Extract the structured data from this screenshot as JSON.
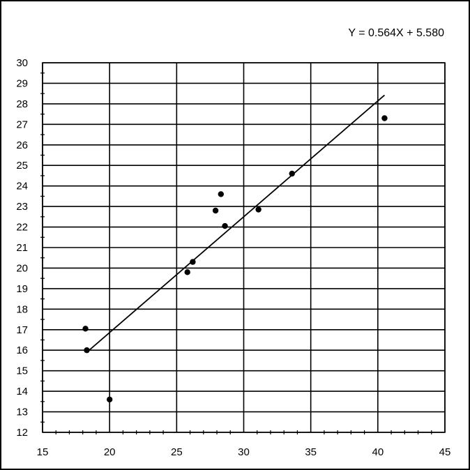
{
  "chart_data": {
    "type": "scatter",
    "title": "",
    "xlabel": "",
    "ylabel": "",
    "xlim": [
      15,
      45
    ],
    "ylim": [
      12,
      30
    ],
    "x_ticks": [
      15,
      20,
      25,
      30,
      35,
      40,
      45
    ],
    "y_ticks": [
      12,
      13,
      14,
      15,
      16,
      17,
      18,
      19,
      20,
      21,
      22,
      23,
      24,
      25,
      26,
      27,
      28,
      29,
      30
    ],
    "x_tick_labels": [
      "15",
      "20",
      "25",
      "30",
      "35",
      "40",
      "45"
    ],
    "y_tick_labels": [
      "12",
      "13",
      "14",
      "15",
      "16",
      "17",
      "18",
      "19",
      "20",
      "21",
      "22",
      "23",
      "24",
      "25",
      "26",
      "27",
      "28",
      "29",
      "30"
    ],
    "grid": true,
    "legend": "none",
    "series": [
      {
        "points": [
          {
            "x": 18.2,
            "y": 17.05
          },
          {
            "x": 18.3,
            "y": 16.0
          },
          {
            "x": 20.0,
            "y": 13.6
          },
          {
            "x": 25.8,
            "y": 19.8
          },
          {
            "x": 26.2,
            "y": 20.3
          },
          {
            "x": 27.9,
            "y": 22.8
          },
          {
            "x": 28.3,
            "y": 23.6
          },
          {
            "x": 28.6,
            "y": 22.05
          },
          {
            "x": 31.1,
            "y": 22.85
          },
          {
            "x": 33.6,
            "y": 24.6
          },
          {
            "x": 40.5,
            "y": 27.3
          }
        ]
      }
    ],
    "trendline": {
      "slope": 0.564,
      "intercept": 5.58,
      "x_start": 18.3,
      "x_end": 40.5,
      "equation": "Y = 0.564X + 5.580"
    },
    "colors": {
      "points": "#000000",
      "line": "#000000",
      "grid": "#000000",
      "background": "#ffffff"
    }
  }
}
